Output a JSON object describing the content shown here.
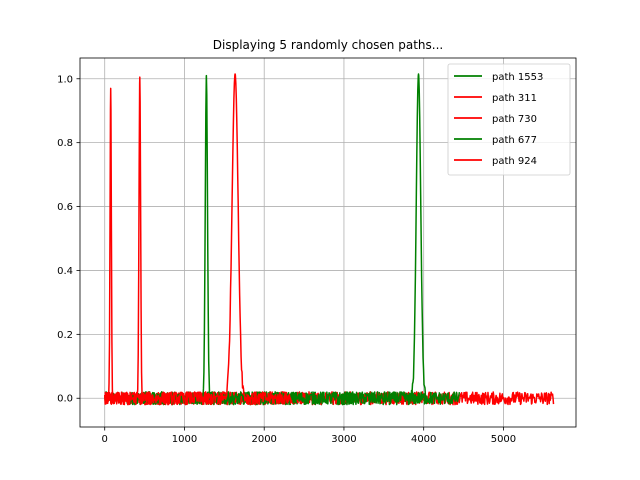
{
  "chart_data": {
    "type": "line",
    "title": "Displaying 5 randomly chosen paths...",
    "xlabel": "",
    "ylabel": "",
    "xlim": [
      -310,
      5910
    ],
    "ylim": [
      -0.09,
      1.065
    ],
    "x_ticks": [
      0,
      1000,
      2000,
      3000,
      4000,
      5000
    ],
    "y_ticks": [
      0.0,
      0.2,
      0.4,
      0.6,
      0.8,
      1.0
    ],
    "x_tick_labels": [
      "0",
      "1000",
      "2000",
      "3000",
      "4000",
      "5000"
    ],
    "y_tick_labels": [
      "0.0",
      "0.2",
      "0.4",
      "0.6",
      "0.8",
      "1.0"
    ],
    "grid": true,
    "legend_position": "top-right",
    "noise_amplitude": 0.02,
    "series": [
      {
        "name": "path 1553",
        "color": "#008000",
        "x_range": [
          0,
          3900
        ],
        "peak_x": null,
        "peak_y": null,
        "peak_width": 0
      },
      {
        "name": "path 311",
        "color": "#ff0000",
        "x_range": [
          0,
          1700
        ],
        "peak_x": 75,
        "peak_y": 0.97,
        "peak_width": 8
      },
      {
        "name": "path 730",
        "color": "#ff0000",
        "x_range": [
          0,
          5630
        ],
        "peak_x": 440,
        "peak_y": 1.005,
        "peak_width": 10
      },
      {
        "name": "path 677",
        "color": "#008000",
        "x_range": [
          320,
          4450
        ],
        "peak_x": 1275,
        "peak_y": 1.01,
        "peak_width": 14
      },
      {
        "name": "path 924",
        "color": "#ff0000",
        "x_range": [
          0,
          2350
        ],
        "peak_x": 1635,
        "peak_y": 1.015,
        "peak_width": 38
      },
      {
        "name": "",
        "color": "#008000",
        "x_range": [
          3800,
          4100
        ],
        "peak_x": 3935,
        "peak_y": 1.015,
        "peak_width": 28
      }
    ]
  }
}
